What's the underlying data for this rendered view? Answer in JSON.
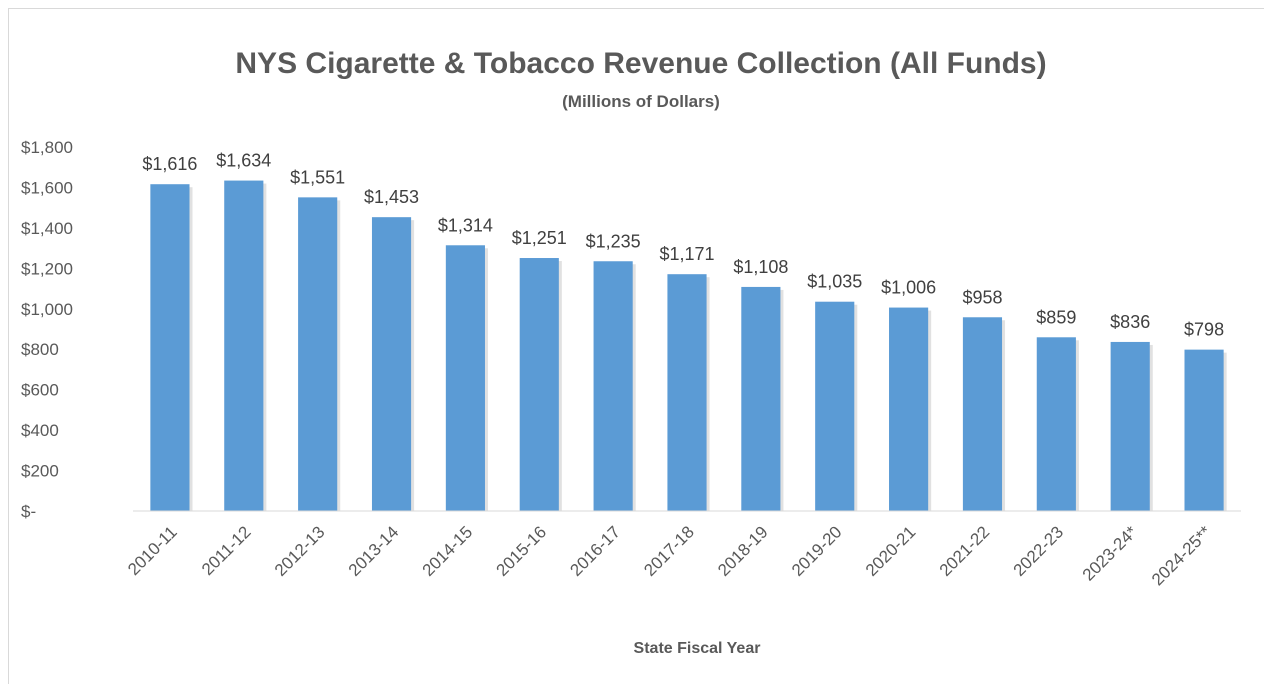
{
  "chart_data": {
    "type": "bar",
    "title": "NYS Cigarette & Tobacco Revenue Collection (All Funds)",
    "subtitle": "(Millions of Dollars)",
    "xlabel": "State Fiscal Year",
    "ylabel": "",
    "ylim": [
      0,
      1800
    ],
    "y_ticks": [
      0,
      200,
      400,
      600,
      800,
      1000,
      1200,
      1400,
      1600,
      1800
    ],
    "y_tick_labels": [
      "$-",
      "$200",
      "$400",
      "$600",
      "$800",
      "$1,000",
      "$1,200",
      "$1,400",
      "$1,600",
      "$1,800"
    ],
    "categories": [
      "2010-11",
      "2011-12",
      "2012-13",
      "2013-14",
      "2014-15",
      "2015-16",
      "2016-17",
      "2017-18",
      "2018-19",
      "2019-20",
      "2020-21",
      "2021-22",
      "2022-23",
      "2023-24*",
      "2024-25**"
    ],
    "values": [
      1616,
      1634,
      1551,
      1453,
      1314,
      1251,
      1235,
      1171,
      1108,
      1035,
      1006,
      958,
      859,
      836,
      798
    ],
    "data_labels": [
      "$1,616",
      "$1,634",
      "$1,551",
      "$1,453",
      "$1,314",
      "$1,251",
      "$1,235",
      "$1,171",
      "$1,108",
      "$1,035",
      "$1,006",
      "$958",
      "$859",
      "$836",
      "$798"
    ],
    "bar_color": "#5b9bd5",
    "grid": false,
    "legend": "none"
  }
}
